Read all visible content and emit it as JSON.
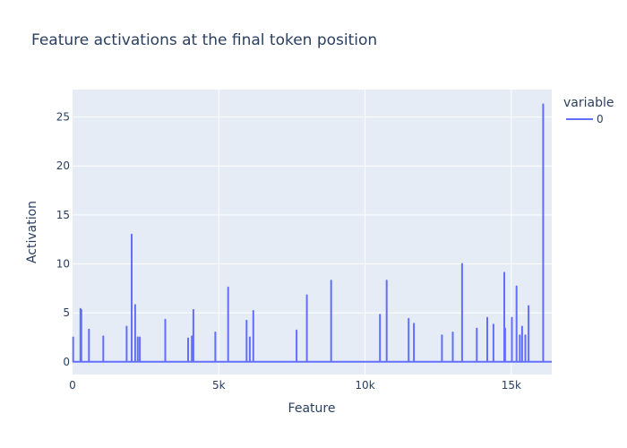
{
  "chart_data": {
    "type": "line",
    "title": "Feature activations at the final token position",
    "xlabel": "Feature",
    "ylabel": "Activation",
    "xlim": [
      0,
      16384
    ],
    "ylim": [
      -1.3,
      27.8
    ],
    "xticks": [
      0,
      5000,
      10000,
      15000
    ],
    "xtick_labels": [
      "0",
      "5k",
      "10k",
      "15k"
    ],
    "yticks": [
      0,
      5,
      10,
      15,
      20,
      25
    ],
    "ytick_labels": [
      "0",
      "5",
      "10",
      "15",
      "20",
      "25"
    ],
    "grid": true,
    "legend": {
      "title": "variable",
      "position": "top-right",
      "entries": [
        "0"
      ]
    },
    "colors": {
      "series": "#636efa",
      "plot_bg": "#e5ecf6",
      "grid": "#ffffff",
      "text": "#2a3f5f"
    },
    "series": [
      {
        "name": "0",
        "spikes": [
          [
            20,
            2.5
          ],
          [
            270,
            5.4
          ],
          [
            300,
            5.3
          ],
          [
            560,
            3.3
          ],
          [
            1050,
            2.6
          ],
          [
            1850,
            3.6
          ],
          [
            2020,
            13.0
          ],
          [
            2140,
            5.8
          ],
          [
            2230,
            2.5
          ],
          [
            2300,
            2.5
          ],
          [
            3170,
            4.3
          ],
          [
            3950,
            2.4
          ],
          [
            4080,
            2.6
          ],
          [
            4130,
            5.3
          ],
          [
            4880,
            3.0
          ],
          [
            5320,
            7.6
          ],
          [
            5950,
            4.2
          ],
          [
            6060,
            2.5
          ],
          [
            6180,
            5.2
          ],
          [
            7660,
            3.2
          ],
          [
            8010,
            6.8
          ],
          [
            8840,
            8.3
          ],
          [
            10510,
            4.8
          ],
          [
            10740,
            8.3
          ],
          [
            11490,
            4.4
          ],
          [
            11670,
            3.9
          ],
          [
            12630,
            2.7
          ],
          [
            13000,
            3.0
          ],
          [
            13320,
            10.0
          ],
          [
            13820,
            3.4
          ],
          [
            14180,
            4.5
          ],
          [
            14390,
            3.8
          ],
          [
            14760,
            9.1
          ],
          [
            14790,
            3.4
          ],
          [
            15020,
            4.5
          ],
          [
            15180,
            7.7
          ],
          [
            15290,
            2.7
          ],
          [
            15370,
            3.6
          ],
          [
            15480,
            2.7
          ],
          [
            15590,
            5.7
          ],
          [
            16090,
            26.3
          ]
        ]
      }
    ]
  }
}
